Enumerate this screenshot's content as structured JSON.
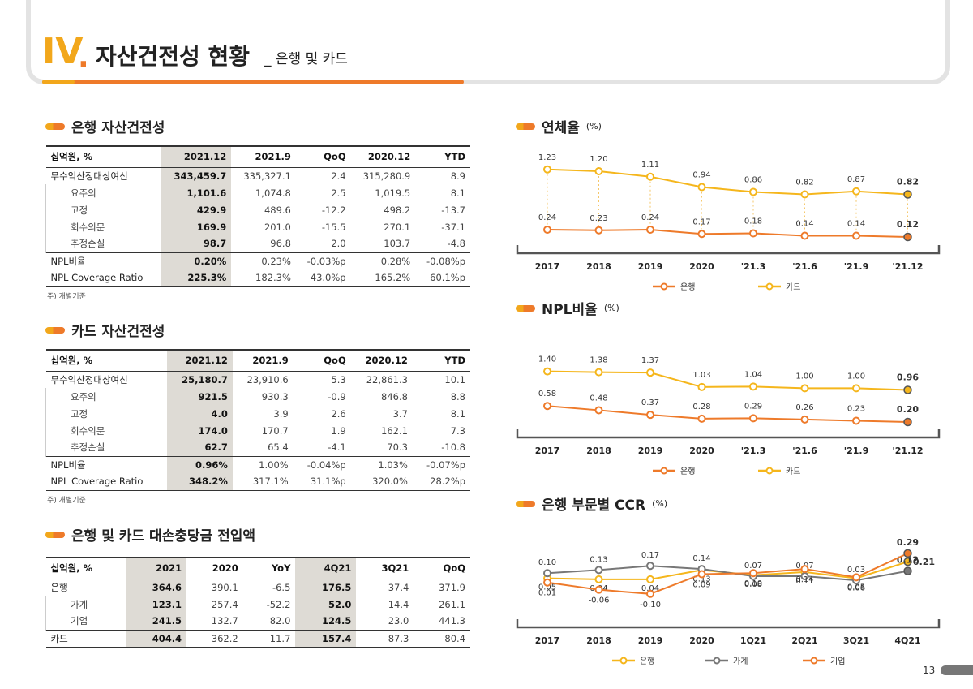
{
  "header": {
    "num": "IV",
    "dot": ".",
    "title": "자산건전성 현황",
    "sub": "_ 은행 및 카드"
  },
  "bank_asset": {
    "title": "은행 자산건전성",
    "cols": [
      "십억원, %",
      "2021.12",
      "2021.9",
      "QoQ",
      "2020.12",
      "YTD"
    ],
    "rows": [
      [
        "무수익산정대상여신",
        "343,459.7",
        "335,327.1",
        "2.4",
        "315,280.9",
        "8.9"
      ],
      [
        "요주의",
        "1,101.6",
        "1,074.8",
        "2.5",
        "1,019.5",
        "8.1"
      ],
      [
        "고정",
        "429.9",
        "489.6",
        "-12.2",
        "498.2",
        "-13.7"
      ],
      [
        "회수의문",
        "169.9",
        "201.0",
        "-15.5",
        "270.1",
        "-37.1"
      ],
      [
        "추정손실",
        "98.7",
        "96.8",
        "2.0",
        "103.7",
        "-4.8"
      ],
      [
        "NPL비율",
        "0.20%",
        "0.23%",
        "-0.03%p",
        "0.28%",
        "-0.08%p"
      ],
      [
        "NPL Coverage Ratio",
        "225.3%",
        "182.3%",
        "43.0%p",
        "165.2%",
        "60.1%p"
      ]
    ],
    "note": "주) 개별기준"
  },
  "card_asset": {
    "title": "카드 자산건전성",
    "cols": [
      "십억원, %",
      "2021.12",
      "2021.9",
      "QoQ",
      "2020.12",
      "YTD"
    ],
    "rows": [
      [
        "무수익산정대상여신",
        "25,180.7",
        "23,910.6",
        "5.3",
        "22,861.3",
        "10.1"
      ],
      [
        "요주의",
        "921.5",
        "930.3",
        "-0.9",
        "846.8",
        "8.8"
      ],
      [
        "고정",
        "4.0",
        "3.9",
        "2.6",
        "3.7",
        "8.1"
      ],
      [
        "회수의문",
        "174.0",
        "170.7",
        "1.9",
        "162.1",
        "7.3"
      ],
      [
        "추정손실",
        "62.7",
        "65.4",
        "-4.1",
        "70.3",
        "-10.8"
      ],
      [
        "NPL비율",
        "0.96%",
        "1.00%",
        "-0.04%p",
        "1.03%",
        "-0.07%p"
      ],
      [
        "NPL Coverage Ratio",
        "348.2%",
        "317.1%",
        "31.1%p",
        "320.0%",
        "28.2%p"
      ]
    ],
    "note": "주) 개별기준"
  },
  "provision": {
    "title": "은행 및 카드 대손충당금 전입액",
    "cols": [
      "십억원, %",
      "2021",
      "2020",
      "YoY",
      "4Q21",
      "3Q21",
      "QoQ"
    ],
    "rows": [
      [
        "은행",
        "364.6",
        "390.1",
        "-6.5",
        "176.5",
        "37.4",
        "371.9"
      ],
      [
        "가계",
        "123.1",
        "257.4",
        "-52.2",
        "52.0",
        "14.4",
        "261.1"
      ],
      [
        "기업",
        "241.5",
        "132.7",
        "82.0",
        "124.5",
        "23.0",
        "441.3"
      ],
      [
        "카드",
        "404.4",
        "362.2",
        "11.7",
        "157.4",
        "87.3",
        "80.4"
      ]
    ]
  },
  "chart_titles": {
    "delinq": {
      "title": "연체율",
      "unit": "(%)"
    },
    "npl": {
      "title": "NPL비율",
      "unit": "(%)"
    },
    "ccr": {
      "title": "은행 부문별 CCR",
      "unit": "(%)"
    }
  },
  "chart_data": [
    {
      "type": "line",
      "title": "연체율",
      "categories": [
        "2017",
        "2018",
        "2019",
        "2020",
        "'21.3",
        "'21.6",
        "'21.9",
        "'21.12"
      ],
      "series": [
        {
          "name": "은행",
          "color": "#ee7a2a",
          "values": [
            0.24,
            0.23,
            0.24,
            0.17,
            0.18,
            0.14,
            0.14,
            0.12
          ]
        },
        {
          "name": "카드",
          "color": "#f5b61c",
          "values": [
            1.23,
            1.2,
            1.11,
            0.94,
            0.86,
            0.82,
            0.87,
            0.82
          ]
        }
      ]
    },
    {
      "type": "line",
      "title": "NPL비율",
      "categories": [
        "2017",
        "2018",
        "2019",
        "2020",
        "'21.3",
        "'21.6",
        "'21.9",
        "'21.12"
      ],
      "series": [
        {
          "name": "은행",
          "color": "#ee7a2a",
          "values": [
            0.58,
            0.48,
            0.37,
            0.28,
            0.29,
            0.26,
            0.23,
            0.2
          ]
        },
        {
          "name": "카드",
          "color": "#f5b61c",
          "values": [
            1.4,
            1.38,
            1.37,
            1.03,
            1.04,
            1.0,
            1.0,
            0.96
          ]
        }
      ]
    },
    {
      "type": "line",
      "title": "은행 부문별 CCR",
      "categories": [
        "2017",
        "2018",
        "2019",
        "2020",
        "1Q21",
        "2Q21",
        "3Q21",
        "4Q21"
      ],
      "series": [
        {
          "name": "은행",
          "color": "#f5b61c",
          "values": [
            0.05,
            0.04,
            0.04,
            0.13,
            0.08,
            0.11,
            0.05,
            0.21
          ]
        },
        {
          "name": "가계",
          "color": "#777777",
          "values": [
            0.1,
            0.13,
            0.17,
            0.14,
            0.07,
            0.07,
            0.03,
            0.12
          ]
        },
        {
          "name": "기업",
          "color": "#ee7a2a",
          "values": [
            0.01,
            -0.06,
            -0.1,
            0.09,
            0.1,
            0.14,
            0.06,
            0.29
          ]
        }
      ]
    }
  ],
  "page_number": "13"
}
